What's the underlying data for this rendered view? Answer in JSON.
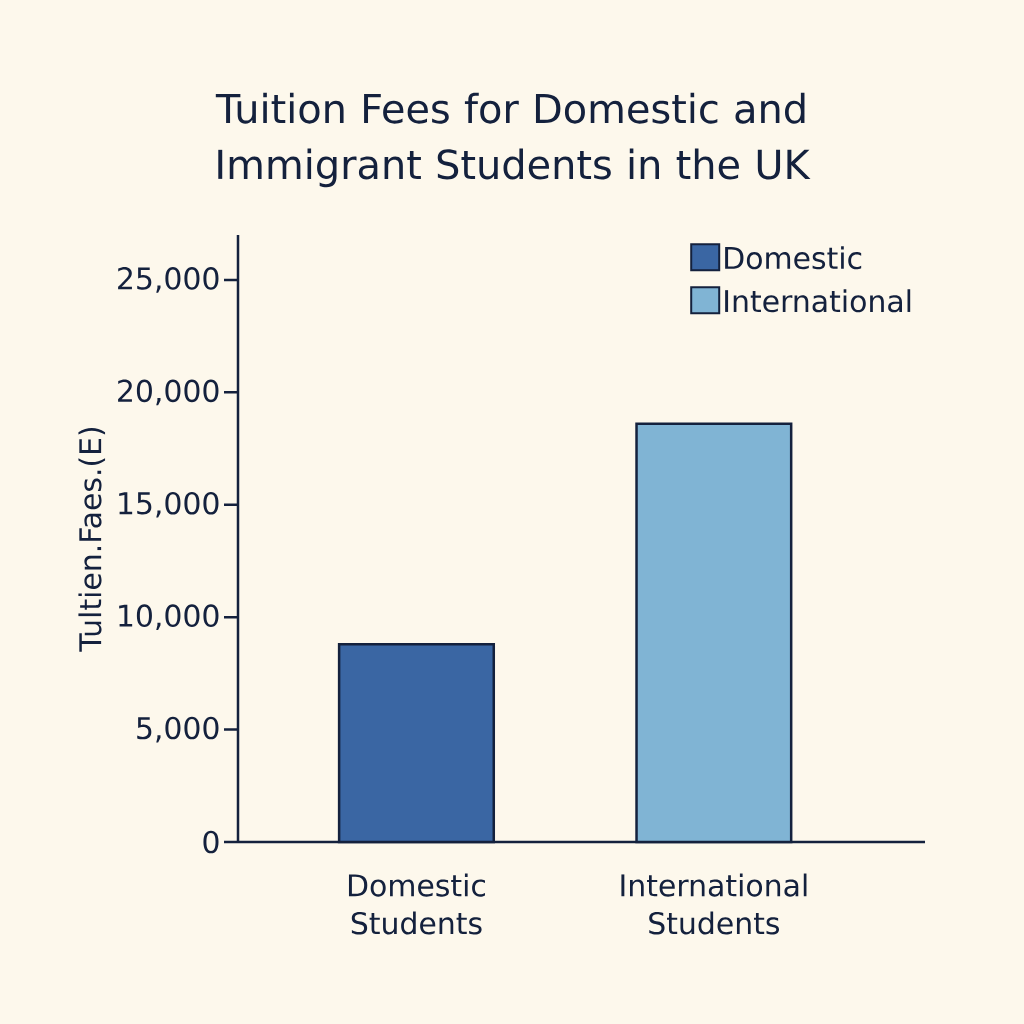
{
  "chart_data": {
    "type": "bar",
    "title": "Tuition Fees for Domestic and Immigrant Students in the UK",
    "ylabel": "Tultien.Faes.(E)",
    "categories": [
      "Domestic Students",
      "International Students"
    ],
    "series": [
      {
        "name": "Domestic",
        "color": "#3a66a3",
        "values": [
          8800,
          null
        ]
      },
      {
        "name": "International",
        "color": "#80b4d4",
        "values": [
          null,
          18600
        ]
      }
    ],
    "ylim": [
      0,
      27000
    ],
    "yticks": [
      {
        "value": 0,
        "label": "0"
      },
      {
        "value": 5000,
        "label": "5,000"
      },
      {
        "value": 10000,
        "label": "10,000"
      },
      {
        "value": 15000,
        "label": "15,000"
      },
      {
        "value": 20000,
        "label": "20,000"
      },
      {
        "value": 25000,
        "label": "25,000"
      }
    ],
    "legend": "top right"
  }
}
